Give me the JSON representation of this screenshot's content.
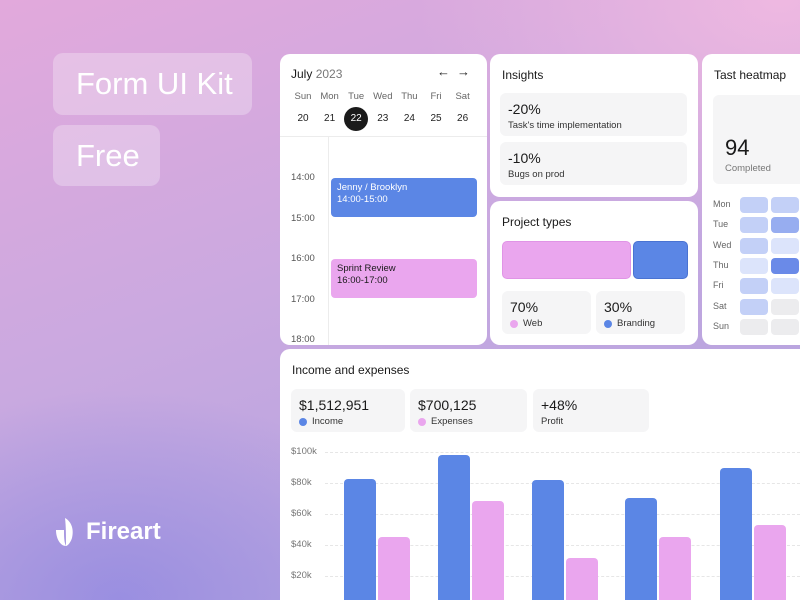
{
  "hero": {
    "title": "Form UI Kit",
    "tag": "Free",
    "brand": "Fireart"
  },
  "calendar": {
    "month": "July",
    "year": "2023",
    "prev_icon": "arrow-left-icon",
    "next_icon": "arrow-right-icon",
    "weekdays": [
      "Sun",
      "Mon",
      "Tue",
      "Wed",
      "Thu",
      "Fri",
      "Sat"
    ],
    "dates": [
      "20",
      "21",
      "22",
      "23",
      "24",
      "25",
      "26"
    ],
    "selected_index": 2,
    "times": [
      "14:00",
      "15:00",
      "16:00",
      "17:00",
      "18:00"
    ],
    "events": [
      {
        "title": "Jenny / Brooklyn",
        "time": "14:00-15:00",
        "color": "#5b86e5"
      },
      {
        "title": "Sprint Review",
        "time": "16:00-17:00",
        "color": "#eaa6ee"
      }
    ]
  },
  "insights": {
    "title": "Insights",
    "items": [
      {
        "value": "-20%",
        "label": "Task's time implementation"
      },
      {
        "value": "-10%",
        "label": "Bugs on prod"
      }
    ]
  },
  "project_types": {
    "title": "Project types",
    "items": [
      {
        "value": "70%",
        "label": "Web",
        "share": 0.7,
        "color": "#eaa6ee"
      },
      {
        "value": "30%",
        "label": "Branding",
        "share": 0.3,
        "color": "#5b86e5"
      }
    ]
  },
  "heatmap": {
    "title": "Tast heatmap",
    "total": "94",
    "total_label": "Completed",
    "days": [
      "Mon",
      "Tue",
      "Wed",
      "Thu",
      "Fri",
      "Sat",
      "Sun"
    ],
    "levels": [
      [
        2,
        2
      ],
      [
        2,
        3
      ],
      [
        2,
        1
      ],
      [
        1,
        4
      ],
      [
        2,
        1
      ],
      [
        2,
        0
      ],
      [
        0,
        0
      ]
    ]
  },
  "income": {
    "title": "Income and expenses",
    "stats": [
      {
        "value": "$1,512,951",
        "label": "Income",
        "color": "#5b86e5"
      },
      {
        "value": "$700,125",
        "label": "Expenses",
        "color": "#eaa6ee"
      },
      {
        "value": "+48%",
        "label": "Profit",
        "color": ""
      }
    ]
  },
  "chart_data": {
    "type": "bar",
    "y_ticks": [
      "$100k",
      "$80k",
      "$60k",
      "$40k",
      "$20k"
    ],
    "ylim": [
      0,
      100000
    ],
    "series": [
      {
        "name": "Income",
        "color": "#5b86e5",
        "values": [
          83000,
          98000,
          82000,
          71000,
          90000
        ]
      },
      {
        "name": "Expenses",
        "color": "#eaa6ee",
        "values": [
          46000,
          69000,
          33000,
          46000,
          54000
        ]
      }
    ]
  }
}
